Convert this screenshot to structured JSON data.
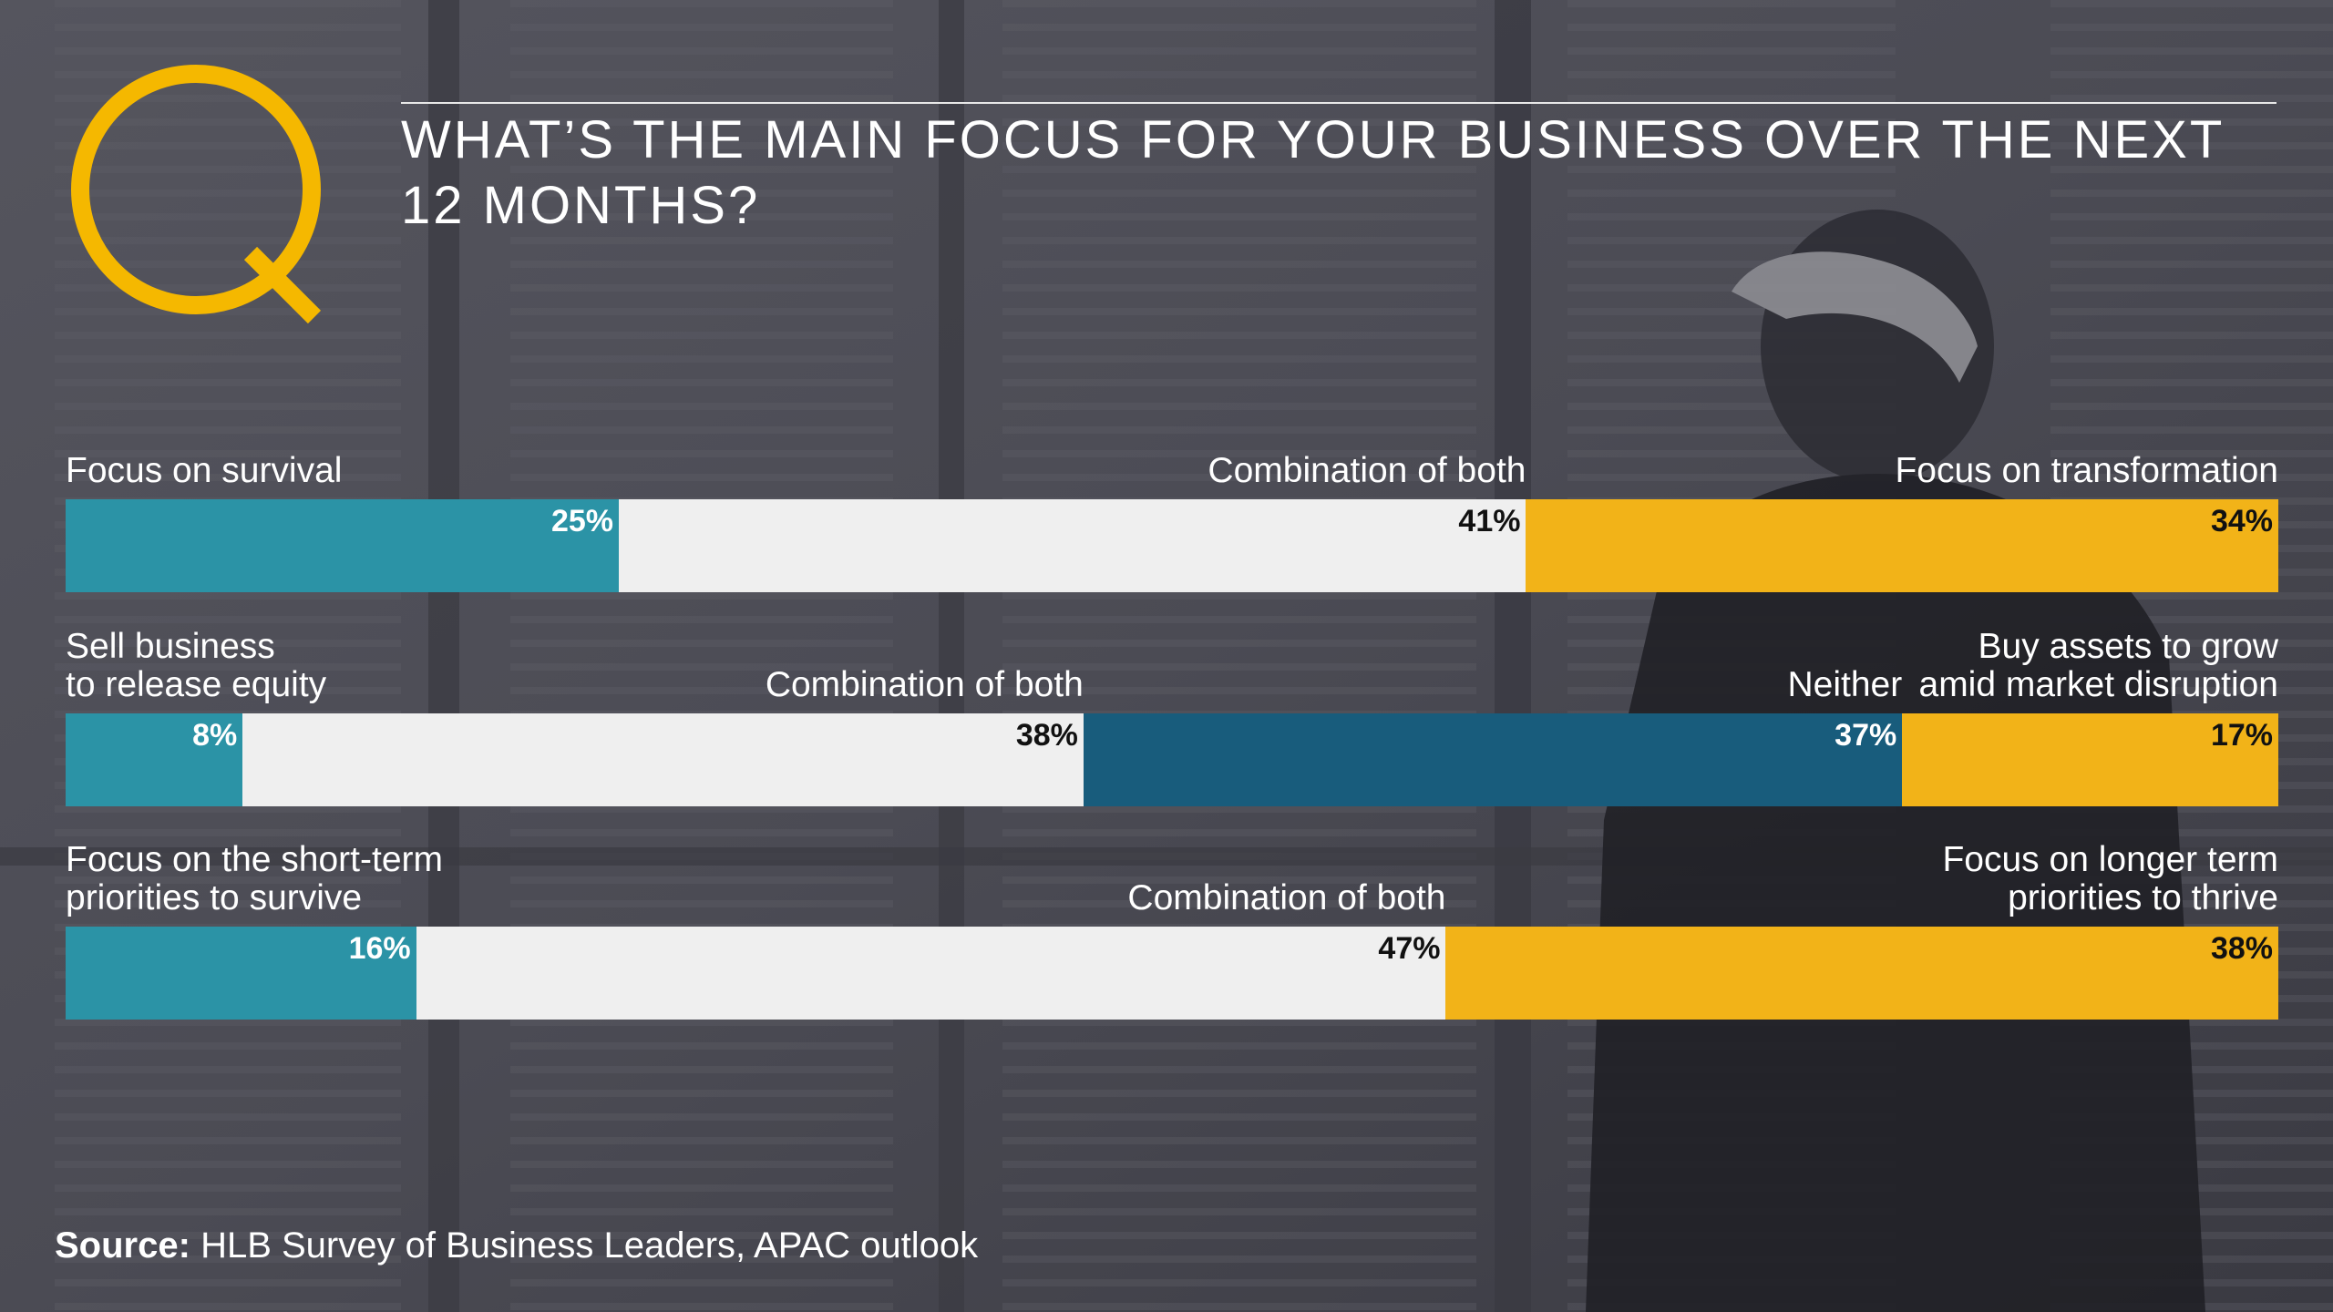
{
  "title": "WHAT’S THE MAIN FOCUS FOR YOUR BUSINESS OVER THE NEXT 12 MONTHS?",
  "source": {
    "label": "Source:",
    "text": "HLB Survey of Business Leaders, APAC outlook"
  },
  "colors": {
    "teal": "#2b93a6",
    "navy": "#185c7c",
    "white": "#efefef",
    "yellow": "#f2b318",
    "logo": "#f5b800"
  },
  "chart_data": {
    "type": "bar",
    "orientation": "horizontal-stacked-100",
    "rows": [
      {
        "segments": [
          {
            "label": "Focus on survival",
            "value": 25,
            "value_label": "25%",
            "color": "teal"
          },
          {
            "label": "Combination of both",
            "value": 41,
            "value_label": "41%",
            "color": "white"
          },
          {
            "label": "Focus on transformation",
            "value": 34,
            "value_label": "34%",
            "color": "yellow"
          }
        ]
      },
      {
        "segments": [
          {
            "label": "Sell business\nto release equity",
            "value": 8,
            "value_label": "8%",
            "color": "teal"
          },
          {
            "label": "Combination of both",
            "value": 38,
            "value_label": "38%",
            "color": "white"
          },
          {
            "label": "Neither",
            "value": 37,
            "value_label": "37%",
            "color": "navy"
          },
          {
            "label": "Buy assets to grow\namid market disruption",
            "value": 17,
            "value_label": "17%",
            "color": "yellow"
          }
        ]
      },
      {
        "segments": [
          {
            "label": "Focus on the short-term\npriorities to survive",
            "value": 16,
            "value_label": "16%",
            "color": "teal"
          },
          {
            "label": "Combination of both",
            "value": 47,
            "value_label": "47%",
            "color": "white"
          },
          {
            "label": "Focus on longer term\npriorities to thrive",
            "value": 38,
            "value_label": "38%",
            "color": "yellow"
          }
        ]
      }
    ]
  }
}
